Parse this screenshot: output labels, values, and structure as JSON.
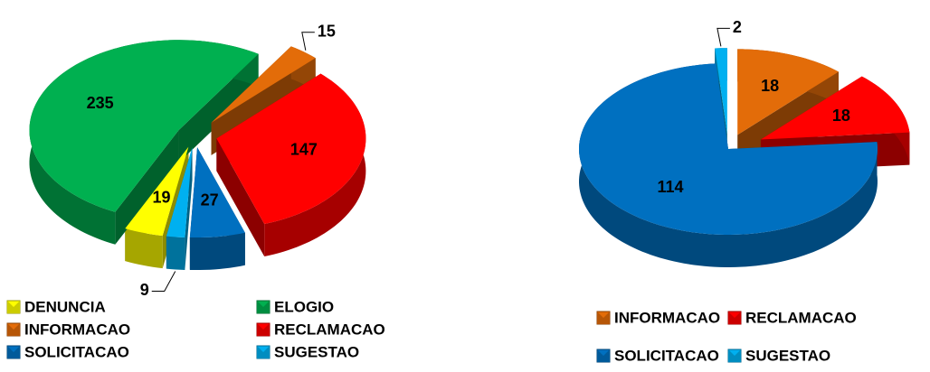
{
  "chart_data": [
    {
      "type": "pie",
      "categories": [
        "DENUNCIA",
        "ELOGIO",
        "INFORMACAO",
        "RECLAMACAO",
        "SOLICITACAO",
        "SUGESTAO"
      ],
      "values": [
        19,
        235,
        15,
        147,
        27,
        9
      ],
      "colors": [
        "#ffff00",
        "#00b050",
        "#e36c09",
        "#ff0000",
        "#0070c0",
        "#00b0f0"
      ],
      "legend": "bottom"
    },
    {
      "type": "pie",
      "categories": [
        "INFORMACAO",
        "RECLAMACAO",
        "SOLICITACAO",
        "SUGESTAO"
      ],
      "values": [
        18,
        18,
        114,
        2
      ],
      "colors": [
        "#e36c09",
        "#ff0000",
        "#0070c0",
        "#00b0f0"
      ],
      "legend": "bottom"
    }
  ]
}
